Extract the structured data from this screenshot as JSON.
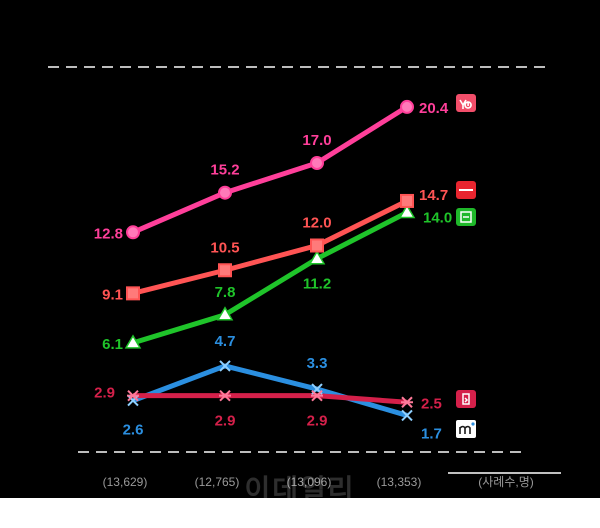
{
  "chart_data": {
    "type": "line",
    "categories": [
      "(13,629)",
      "(12,765)",
      "(13,096)",
      "(13,353)"
    ],
    "unit_note": "(사례수,명)",
    "ylim": [
      0,
      22
    ],
    "grid": false,
    "series": [
      {
        "color": "#ff3f9a",
        "marker": "circle",
        "values": [
          12.8,
          15.2,
          17.0,
          20.4
        ],
        "labels": [
          "12.8",
          "15.2",
          "17.0",
          "20.4"
        ],
        "icon": "ya-app-icon"
      },
      {
        "color": "#ff5454",
        "marker": "square",
        "values": [
          9.1,
          10.5,
          12.0,
          14.7
        ],
        "labels": [
          "9.1",
          "10.5",
          "12.0",
          "14.7"
        ],
        "icon": "store-app-icon"
      },
      {
        "color": "#1fc42a",
        "marker": "triangle",
        "values": [
          6.1,
          7.8,
          11.2,
          14.0
        ],
        "labels": [
          "6.1",
          "7.8",
          "11.2",
          "14.0"
        ],
        "icon": "green-app-icon"
      },
      {
        "color": "#2b8fe0",
        "marker": "x",
        "values": [
          2.6,
          4.7,
          3.3,
          1.7
        ],
        "labels": [
          "2.6",
          "4.7",
          "3.3",
          "1.7"
        ],
        "icon": "m-app-icon"
      },
      {
        "color": "#d4204a",
        "marker": "asterisk",
        "values": [
          2.9,
          2.9,
          2.9,
          2.5
        ],
        "labels": [
          "2.9",
          "2.9",
          "2.9",
          "2.5"
        ],
        "icon": "red-app-icon"
      }
    ]
  },
  "watermark": "이데일리"
}
